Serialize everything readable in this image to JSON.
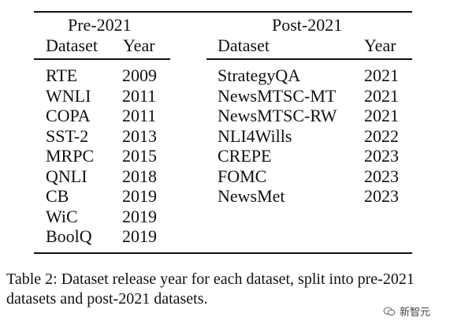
{
  "table": {
    "left_group": {
      "title": "Pre-2021",
      "header": {
        "dataset": "Dataset",
        "year": "Year"
      },
      "rows": [
        {
          "dataset": "RTE",
          "year": "2009"
        },
        {
          "dataset": "WNLI",
          "year": "2011"
        },
        {
          "dataset": "COPA",
          "year": "2011"
        },
        {
          "dataset": "SST-2",
          "year": "2013"
        },
        {
          "dataset": "MRPC",
          "year": "2015"
        },
        {
          "dataset": "QNLI",
          "year": "2018"
        },
        {
          "dataset": "CB",
          "year": "2019"
        },
        {
          "dataset": "WiC",
          "year": "2019"
        },
        {
          "dataset": "BoolQ",
          "year": "2019"
        }
      ]
    },
    "right_group": {
      "title": "Post-2021",
      "header": {
        "dataset": "Dataset",
        "year": "Year"
      },
      "rows": [
        {
          "dataset": "StrategyQA",
          "year": "2021"
        },
        {
          "dataset": "NewsMTSC-MT",
          "year": "2021"
        },
        {
          "dataset": "NewsMTSC-RW",
          "year": "2021"
        },
        {
          "dataset": "NLI4Wills",
          "year": "2022"
        },
        {
          "dataset": "CREPE",
          "year": "2023"
        },
        {
          "dataset": "FOMC",
          "year": "2023"
        },
        {
          "dataset": "NewsMet",
          "year": "2023"
        }
      ]
    }
  },
  "caption": "Table 2: Dataset release year for each dataset, split into pre-2021 datasets and post-2021 datasets.",
  "watermark": {
    "text": "新智元",
    "icon": "wechat-logo-icon"
  }
}
